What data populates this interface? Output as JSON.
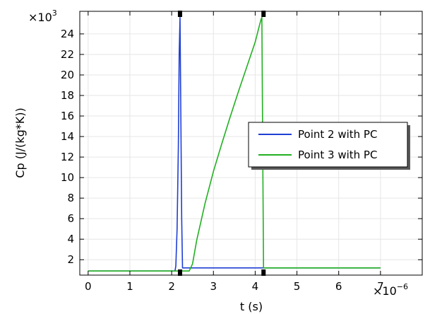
{
  "chart_data": {
    "type": "line",
    "title": "",
    "xlabel": "t (s)",
    "ylabel": "Cp (J/(kg*K))",
    "x_multiplier_label": "×10",
    "x_multiplier_exp": "−6",
    "y_multiplier_label": "×10",
    "y_multiplier_exp": "3",
    "xlim": [
      -0.2,
      8.0
    ],
    "ylim": [
      0.5,
      26.2
    ],
    "x_ticks": [
      0,
      1,
      2,
      3,
      4,
      5,
      6,
      7
    ],
    "x_tick_labels": [
      "0",
      "1",
      "2",
      "3",
      "4",
      "5",
      "6",
      "7"
    ],
    "y_ticks": [
      2,
      4,
      6,
      8,
      10,
      12,
      14,
      16,
      18,
      20,
      22,
      24
    ],
    "y_tick_labels": [
      "2",
      "4",
      "6",
      "8",
      "10",
      "12",
      "14",
      "16",
      "18",
      "20",
      "22",
      "24"
    ],
    "grid": true,
    "legend_position": "center-right",
    "highlight_x": [
      2.2,
      4.2
    ],
    "series": [
      {
        "name": "Point 2 with PC",
        "color": "#1f3fd4",
        "x": [
          0,
          2.08,
          2.1,
          2.13,
          2.16,
          2.18,
          2.2,
          2.22,
          2.24,
          2.26,
          2.3,
          7.0
        ],
        "y": [
          0.9,
          0.9,
          1.4,
          5.0,
          13.0,
          22.0,
          25.6,
          16.0,
          6.0,
          1.2,
          1.2,
          1.2
        ]
      },
      {
        "name": "Point 3 with PC",
        "color": "#22b022",
        "x": [
          0,
          2.42,
          2.5,
          2.6,
          2.8,
          3.0,
          3.2,
          3.4,
          3.6,
          3.8,
          4.0,
          4.1,
          4.14,
          4.16,
          4.18,
          4.2,
          7.0
        ],
        "y": [
          0.9,
          0.9,
          1.6,
          3.9,
          7.5,
          10.6,
          13.3,
          15.9,
          18.4,
          20.8,
          23.2,
          24.8,
          25.4,
          25.6,
          13.0,
          1.2,
          1.2
        ]
      }
    ]
  }
}
